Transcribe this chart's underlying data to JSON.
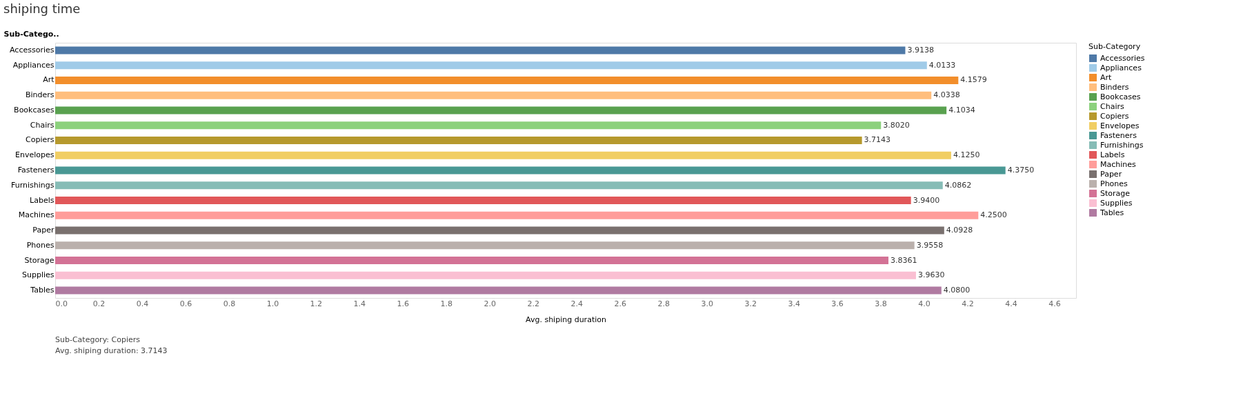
{
  "chart_data": {
    "type": "bar",
    "orientation": "horizontal",
    "title": "shiping time",
    "ylabel": "Sub-Catego..",
    "xlabel": "Avg. shiping duration",
    "legend_title": "Sub-Category",
    "legend": "right",
    "grid": false,
    "categories": [
      "Accessories",
      "Appliances",
      "Art",
      "Binders",
      "Bookcases",
      "Chairs",
      "Copiers",
      "Envelopes",
      "Fasteners",
      "Furnishings",
      "Labels",
      "Machines",
      "Paper",
      "Phones",
      "Storage",
      "Supplies",
      "Tables"
    ],
    "series": [
      {
        "name": "Accessories",
        "color": "#4e79a7",
        "values": [
          3.9138,
          null,
          null,
          null,
          null,
          null,
          null,
          null,
          null,
          null,
          null,
          null,
          null,
          null,
          null,
          null,
          null
        ]
      },
      {
        "name": "Appliances",
        "color": "#a0cbe8",
        "values": [
          null,
          4.0133,
          null,
          null,
          null,
          null,
          null,
          null,
          null,
          null,
          null,
          null,
          null,
          null,
          null,
          null,
          null
        ]
      },
      {
        "name": "Art",
        "color": "#f28e2b",
        "values": [
          null,
          null,
          4.1579,
          null,
          null,
          null,
          null,
          null,
          null,
          null,
          null,
          null,
          null,
          null,
          null,
          null,
          null
        ]
      },
      {
        "name": "Binders",
        "color": "#ffbe7d",
        "values": [
          null,
          null,
          null,
          4.0338,
          null,
          null,
          null,
          null,
          null,
          null,
          null,
          null,
          null,
          null,
          null,
          null,
          null
        ]
      },
      {
        "name": "Bookcases",
        "color": "#59a14f",
        "values": [
          null,
          null,
          null,
          null,
          4.1034,
          null,
          null,
          null,
          null,
          null,
          null,
          null,
          null,
          null,
          null,
          null,
          null
        ]
      },
      {
        "name": "Chairs",
        "color": "#8cd17d",
        "values": [
          null,
          null,
          null,
          null,
          null,
          3.802,
          null,
          null,
          null,
          null,
          null,
          null,
          null,
          null,
          null,
          null,
          null
        ]
      },
      {
        "name": "Copiers",
        "color": "#b6992d",
        "values": [
          null,
          null,
          null,
          null,
          null,
          null,
          3.7143,
          null,
          null,
          null,
          null,
          null,
          null,
          null,
          null,
          null,
          null
        ]
      },
      {
        "name": "Envelopes",
        "color": "#f1ce63",
        "values": [
          null,
          null,
          null,
          null,
          null,
          null,
          null,
          4.125,
          null,
          null,
          null,
          null,
          null,
          null,
          null,
          null,
          null
        ]
      },
      {
        "name": "Fasteners",
        "color": "#499894",
        "values": [
          null,
          null,
          null,
          null,
          null,
          null,
          null,
          null,
          4.375,
          null,
          null,
          null,
          null,
          null,
          null,
          null,
          null
        ]
      },
      {
        "name": "Furnishings",
        "color": "#86bcb6",
        "values": [
          null,
          null,
          null,
          null,
          null,
          null,
          null,
          null,
          null,
          4.0862,
          null,
          null,
          null,
          null,
          null,
          null,
          null
        ]
      },
      {
        "name": "Labels",
        "color": "#e15759",
        "values": [
          null,
          null,
          null,
          null,
          null,
          null,
          null,
          null,
          null,
          null,
          3.94,
          null,
          null,
          null,
          null,
          null,
          null
        ]
      },
      {
        "name": "Machines",
        "color": "#ff9d9a",
        "values": [
          null,
          null,
          null,
          null,
          null,
          null,
          null,
          null,
          null,
          null,
          null,
          4.25,
          null,
          null,
          null,
          null,
          null
        ]
      },
      {
        "name": "Paper",
        "color": "#79706e",
        "values": [
          null,
          null,
          null,
          null,
          null,
          null,
          null,
          null,
          null,
          null,
          null,
          null,
          4.0928,
          null,
          null,
          null,
          null
        ]
      },
      {
        "name": "Phones",
        "color": "#bab0ac",
        "values": [
          null,
          null,
          null,
          null,
          null,
          null,
          null,
          null,
          null,
          null,
          null,
          null,
          null,
          3.9558,
          null,
          null,
          null
        ]
      },
      {
        "name": "Storage",
        "color": "#d37295",
        "values": [
          null,
          null,
          null,
          null,
          null,
          null,
          null,
          null,
          null,
          null,
          null,
          null,
          null,
          null,
          3.8361,
          null,
          null
        ]
      },
      {
        "name": "Supplies",
        "color": "#fabfd2",
        "values": [
          null,
          null,
          null,
          null,
          null,
          null,
          null,
          null,
          null,
          null,
          null,
          null,
          null,
          null,
          null,
          3.963,
          null
        ]
      },
      {
        "name": "Tables",
        "color": "#b07aa1",
        "values": [
          null,
          null,
          null,
          null,
          null,
          null,
          null,
          null,
          null,
          null,
          null,
          null,
          null,
          null,
          null,
          null,
          4.08
        ]
      }
    ],
    "value_labels": [
      "3.9138",
      "4.0133",
      "4.1579",
      "4.0338",
      "4.1034",
      "3.8020",
      "3.7143",
      "4.1250",
      "4.3750",
      "4.0862",
      "3.9400",
      "4.2500",
      "4.0928",
      "3.9558",
      "3.8361",
      "3.9630",
      "4.0800"
    ],
    "xlim": [
      0,
      4.7
    ],
    "xticks": [
      {
        "value": 0,
        "label": "0.0"
      },
      0.2,
      0.4,
      0.6,
      0.8,
      {
        "value": 1,
        "label": "1.0"
      },
      1.2,
      1.4,
      1.6,
      1.8,
      {
        "value": 2,
        "label": "2.0"
      },
      2.2,
      2.4,
      2.6,
      2.8,
      {
        "value": 3,
        "label": "3.0"
      },
      3.2,
      3.4,
      3.6,
      3.8,
      {
        "value": 4,
        "label": "4.0"
      },
      4.2,
      4.4,
      4.6
    ],
    "annotations": [
      "Sub-Category: Copiers\nAvg. shiping duration: 3.7143"
    ]
  }
}
